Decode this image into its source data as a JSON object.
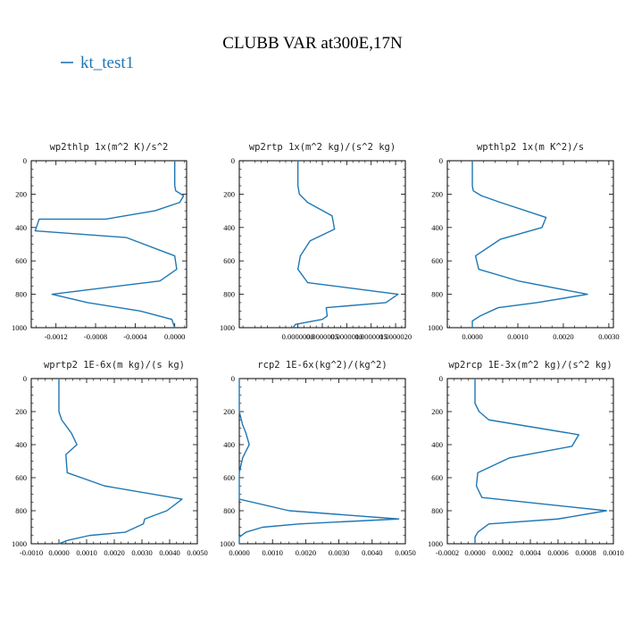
{
  "figure": {
    "title": "CLUBB VAR at300E,17N",
    "legend": "kt_test1",
    "line_color": "#1f77b4"
  },
  "chart_data": [
    {
      "type": "line",
      "title": "wp2thlp   1x(m^2 K)/s^2",
      "xlim": [
        -0.00145,
        0.00012
      ],
      "ylim": [
        1000,
        0
      ],
      "xticks": [
        -0.0012,
        -0.0008,
        -0.0004,
        0
      ],
      "xticklabels": [
        "-0.0012",
        "-0.0008",
        "-0.0004",
        "0.0000"
      ],
      "yticks": [
        0,
        200,
        400,
        600,
        800,
        1000
      ],
      "yticklabels": [
        "0",
        "200",
        "400",
        "600",
        "800",
        "1000"
      ],
      "series": [
        {
          "name": "kt_test1",
          "x": [
            0,
            0,
            1e-05,
            9e-05,
            5e-05,
            -0.0002,
            -0.0007,
            -0.00137,
            -0.00141,
            -0.00049,
            0,
            2e-05,
            -0.00015,
            -0.00124,
            -0.00088,
            -0.00035,
            -3e-05,
            0
          ],
          "y": [
            0,
            150,
            180,
            210,
            250,
            300,
            350,
            350,
            420,
            460,
            570,
            650,
            720,
            800,
            850,
            900,
            950,
            1000
          ]
        }
      ]
    },
    {
      "type": "line",
      "title": "wp2rtp   1x(m^2 kg)/(s^2 kg)",
      "xlim": [
        -1.2e-06,
        2.2e-06
      ],
      "ylim": [
        1000,
        0
      ],
      "xticks": [
        0,
        5e-07,
        1e-06,
        1.5e-06,
        2e-06
      ],
      "xticklabels": [
        "0.0000000",
        "0.0000005",
        "0.0000010",
        "0.0000015",
        "0.0000020"
      ],
      "yticks": [
        0,
        200,
        400,
        600,
        800,
        1000
      ],
      "yticklabels": [
        "0",
        "200",
        "400",
        "600",
        "800",
        "1000"
      ],
      "series": [
        {
          "name": "kt_test1",
          "x": [
            0,
            0,
            3e-08,
            2e-07,
            7e-07,
            7.5e-07,
            2.5e-07,
            5e-08,
            0,
            2e-07,
            2.05e-06,
            1.8e-06,
            5.8e-07,
            6e-07,
            5e-07,
            -5e-08,
            -1e-07
          ],
          "y": [
            0,
            150,
            200,
            250,
            330,
            410,
            480,
            570,
            650,
            730,
            800,
            850,
            880,
            930,
            950,
            980,
            1000
          ]
        }
      ]
    },
    {
      "type": "line",
      "title": "wpthlp2   1x(m K^2)/s",
      "xlim": [
        -0.00055,
        0.0031
      ],
      "ylim": [
        1000,
        0
      ],
      "xticks": [
        0,
        0.001,
        0.002,
        0.003
      ],
      "xticklabels": [
        "0.0000",
        "0.0010",
        "0.0020",
        "0.0030"
      ],
      "yticks": [
        0,
        200,
        400,
        600,
        800,
        1000
      ],
      "yticklabels": [
        "0",
        "200",
        "400",
        "600",
        "800",
        "1000"
      ],
      "series": [
        {
          "name": "kt_test1",
          "x": [
            0,
            0,
            2e-05,
            0.0002,
            0.00062,
            0.00162,
            0.00153,
            0.00062,
            7e-05,
            0.00014,
            0.00101,
            0.00253,
            0.00142,
            0.00057,
            0.00017,
            0,
            0
          ],
          "y": [
            0,
            150,
            180,
            210,
            250,
            340,
            400,
            470,
            570,
            650,
            720,
            800,
            850,
            880,
            930,
            960,
            1000
          ]
        }
      ]
    },
    {
      "type": "line",
      "title": "wprtp2   1E-6x(m kg)/(s kg)",
      "xlim": [
        -0.001,
        0.005
      ],
      "ylim": [
        1000,
        0
      ],
      "xticks": [
        -0.001,
        0,
        0.001,
        0.002,
        0.003,
        0.004,
        0.005
      ],
      "xticklabels": [
        "-0.0010",
        "0.0000",
        "0.0010",
        "0.0020",
        "0.0030",
        "0.0040",
        "0.0050"
      ],
      "yticks": [
        0,
        200,
        400,
        600,
        800,
        1000
      ],
      "yticklabels": [
        "0",
        "200",
        "400",
        "600",
        "800",
        "1000"
      ],
      "series": [
        {
          "name": "kt_test1",
          "x": [
            0,
            0,
            0.0001,
            0.00045,
            0.00065,
            0.00025,
            0.0003,
            0.00165,
            0.00445,
            0.0039,
            0.0031,
            0.00305,
            0.0024,
            0.0011,
            0.0003,
            0
          ],
          "y": [
            0,
            200,
            250,
            330,
            400,
            460,
            570,
            650,
            730,
            800,
            850,
            880,
            930,
            950,
            980,
            1000
          ]
        }
      ]
    },
    {
      "type": "line",
      "title": "rcp2   1E-6x(kg^2)/(kg^2)",
      "xlim": [
        0,
        0.005
      ],
      "ylim": [
        1000,
        0
      ],
      "xticks": [
        0,
        0.001,
        0.002,
        0.003,
        0.004,
        0.005
      ],
      "xticklabels": [
        "0.0000",
        "0.0010",
        "0.0020",
        "0.0030",
        "0.0040",
        "0.0050"
      ],
      "yticks": [
        0,
        200,
        400,
        600,
        800,
        1000
      ],
      "yticklabels": [
        "0",
        "200",
        "400",
        "600",
        "800",
        "1000"
      ],
      "series": [
        {
          "name": "kt_test1",
          "x": [
            0,
            0,
            0.0001,
            0.0002,
            0.0003,
            0.0001,
            0,
            0,
            0.0015,
            0.0048,
            0.0018,
            0.0007,
            0.0002,
            0,
            0
          ],
          "y": [
            0,
            200,
            280,
            330,
            400,
            480,
            570,
            730,
            800,
            850,
            880,
            900,
            930,
            960,
            1000
          ]
        }
      ]
    },
    {
      "type": "line",
      "title": "wp2rcp   1E-3x(m^2 kg)/(s^2 kg)",
      "xlim": [
        -0.0002,
        0.001
      ],
      "ylim": [
        1000,
        0
      ],
      "xticks": [
        -0.0002,
        0,
        0.0002,
        0.0004,
        0.0006,
        0.0008,
        0.001
      ],
      "xticklabels": [
        "-0.0002",
        "0.0000",
        "0.0002",
        "0.0004",
        "0.0006",
        "0.0008",
        "0.0010"
      ],
      "yticks": [
        0,
        200,
        400,
        600,
        800,
        1000
      ],
      "yticklabels": [
        "0",
        "200",
        "400",
        "600",
        "800",
        "1000"
      ],
      "series": [
        {
          "name": "kt_test1",
          "x": [
            0,
            0,
            3e-05,
            0.0001,
            0.00075,
            0.0007,
            0.00025,
            2e-05,
            1e-05,
            5e-05,
            0.00095,
            0.0006,
            0.0001,
            2e-05,
            0,
            0
          ],
          "y": [
            0,
            150,
            200,
            250,
            340,
            410,
            480,
            570,
            650,
            720,
            800,
            850,
            880,
            930,
            960,
            1000
          ]
        }
      ]
    }
  ]
}
